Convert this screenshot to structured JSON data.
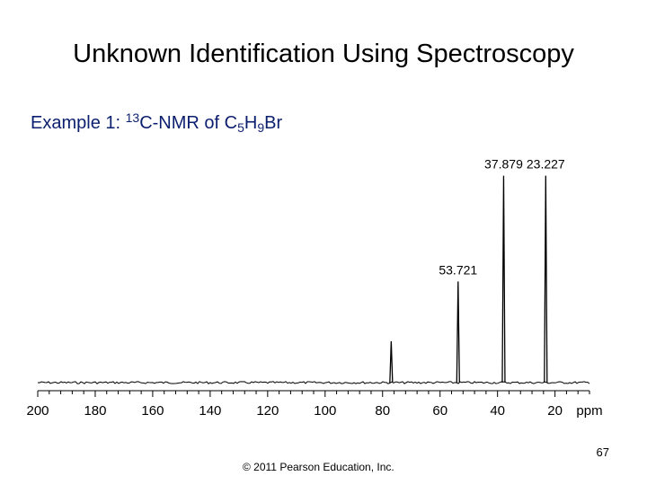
{
  "slide": {
    "title": "Unknown Identification Using Spectroscopy",
    "subtitle": {
      "prefix": "Example 1: ",
      "isotope_mass": "13",
      "technique": "C-NMR of C",
      "sub_c": "5",
      "h": "H",
      "sub_h": "9",
      "br": "Br"
    },
    "page_number": "67",
    "copyright": "© 2011 Pearson Education, Inc."
  },
  "chart_data": {
    "type": "line",
    "xlabel": "ppm",
    "xlim": [
      200,
      8
    ],
    "x_reversed": true,
    "x_ticks": [
      200,
      180,
      160,
      140,
      120,
      100,
      80,
      60,
      40,
      20
    ],
    "x_tick_labels": [
      "200",
      "180",
      "160",
      "140",
      "120",
      "100",
      "80",
      "60",
      "40",
      "20"
    ],
    "ylim": [
      0,
      1
    ],
    "grid": false,
    "legend": "none",
    "peaks": [
      {
        "ppm": 77.0,
        "intensity": 0.18,
        "label": ""
      },
      {
        "ppm": 53.721,
        "intensity": 0.44,
        "label": "53.721"
      },
      {
        "ppm": 37.879,
        "intensity": 0.9,
        "label": "37.879"
      },
      {
        "ppm": 23.227,
        "intensity": 0.9,
        "label": "23.227"
      }
    ],
    "line_color": "#000000"
  }
}
